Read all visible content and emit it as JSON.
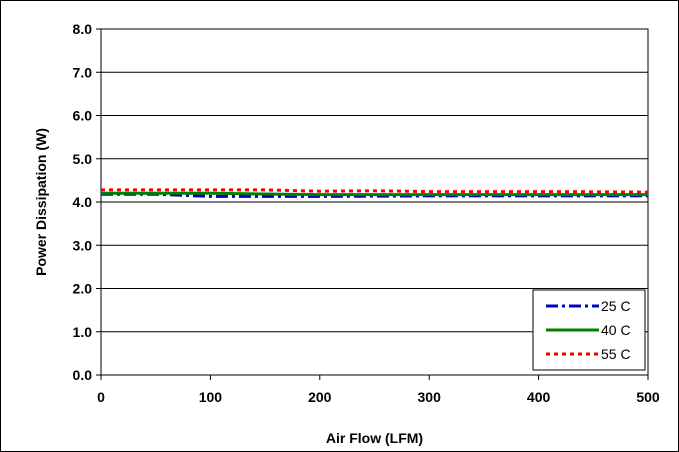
{
  "chart_data": {
    "type": "line",
    "xlabel": "Air Flow (LFM)",
    "ylabel": "Power Dissipation (W)",
    "xlim": [
      0,
      500
    ],
    "ylim": [
      0.0,
      8.0
    ],
    "x_ticks": [
      "0",
      "100",
      "200",
      "300",
      "400",
      "500"
    ],
    "y_ticks": [
      "0.0",
      "1.0",
      "2.0",
      "3.0",
      "4.0",
      "5.0",
      "6.0",
      "7.0",
      "8.0"
    ],
    "grid": "horizontal",
    "legend_position": "bottom-right",
    "series": [
      {
        "name": "25 C",
        "color": "#0000cc",
        "dash": "dash-dot",
        "x": [
          0,
          50,
          100,
          200,
          300,
          400,
          500
        ],
        "y": [
          4.18,
          4.18,
          4.13,
          4.13,
          4.14,
          4.14,
          4.14
        ]
      },
      {
        "name": "40 C",
        "color": "#008000",
        "dash": "solid",
        "x": [
          0,
          100,
          200,
          300,
          400,
          500
        ],
        "y": [
          4.2,
          4.2,
          4.17,
          4.17,
          4.17,
          4.17
        ]
      },
      {
        "name": "55 C",
        "color": "#ff0000",
        "dash": "dot",
        "x": [
          0,
          100,
          150,
          200,
          250,
          300,
          400,
          500
        ],
        "y": [
          4.28,
          4.28,
          4.28,
          4.25,
          4.26,
          4.24,
          4.24,
          4.23
        ]
      }
    ]
  }
}
